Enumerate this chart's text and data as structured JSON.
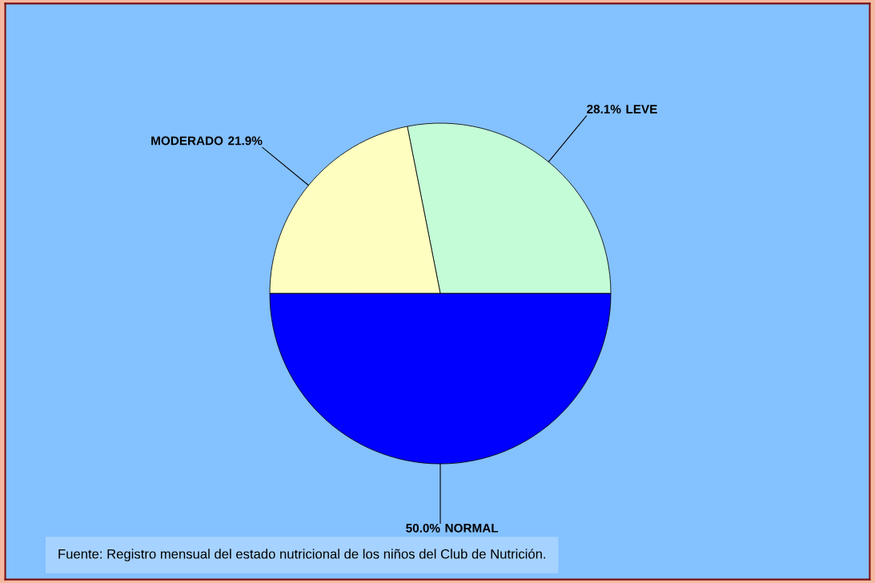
{
  "chart_data": {
    "type": "pie",
    "categories": [
      "LEVE",
      "MODERADO",
      "NORMAL"
    ],
    "values": [
      28.1,
      21.9,
      50.0
    ],
    "colors": [
      "#c3fcd7",
      "#fdfec0",
      "#0000ff"
    ],
    "value_labels": [
      "28.1%",
      "21.9%",
      "50.0%"
    ],
    "annotations": [
      "Fuente: Registro mensual del estado nutricional de los niños del Club de Nutrición."
    ]
  }
}
